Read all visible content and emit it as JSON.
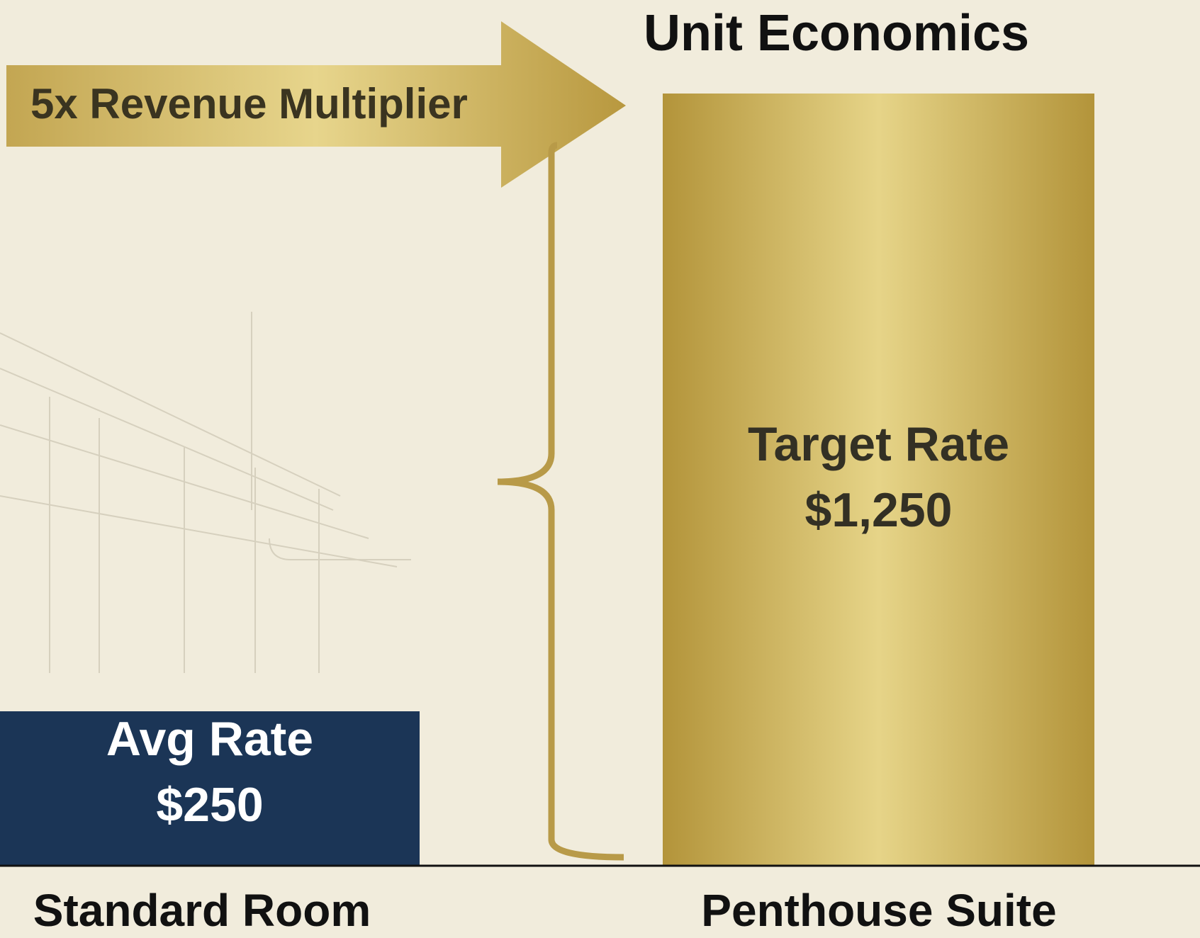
{
  "chart_data": {
    "type": "bar",
    "title": "Unit Economics",
    "annotation": "5x Revenue Multiplier",
    "categories": [
      "Standard Room",
      "Penthouse Suite"
    ],
    "values": [
      250,
      1250
    ],
    "value_titles": [
      "Avg Rate",
      "Target Rate"
    ],
    "value_labels": [
      "$250",
      "$1,250"
    ],
    "colors": [
      "#1b3556",
      "#c9ad52"
    ],
    "ylim": [
      0,
      1250
    ]
  }
}
